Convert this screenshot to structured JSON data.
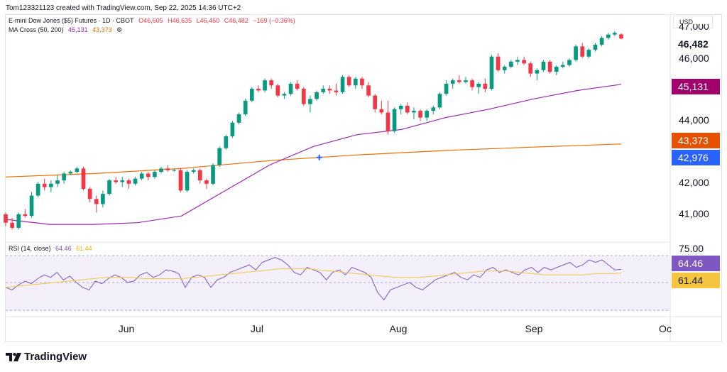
{
  "header": {
    "author_line": "Tom123321123 created with TradingView.com, Sep 22, 2025 14:36 UTC+2"
  },
  "legend": {
    "symbol": "E-mini Dow Jones ($5) Futures · 1D · CBOT",
    "open": "O46,605",
    "high": "H46,635",
    "low": "L46,460",
    "close": "C46,482",
    "change": "−169 (−0.36%)",
    "ma_label": "MA Cross (50, 200)",
    "ma50": "45,131",
    "ma200": "43,373",
    "ma_settings": "⚙",
    "rsi_label": "RSI (14, close)",
    "rsi_value": "64.46",
    "rsi_ma": "61.44"
  },
  "currency": "USD",
  "price_axis": {
    "labels": [
      "47,000",
      "46,000",
      "44,000",
      "42,000",
      "41,000"
    ],
    "top_partial": "47,000"
  },
  "rsi_axis": {
    "label": "75.00"
  },
  "badges": {
    "last_price": "46,482",
    "ma50": "45,131",
    "ma200": "43,373",
    "cross": "42,976",
    "rsi": "64.46",
    "rsi_ma": "61.44"
  },
  "time_axis": [
    "Jun",
    "Jul",
    "Aug",
    "Sep",
    "Oc"
  ],
  "colors": {
    "up": "#089981",
    "down": "#f23645",
    "ma50": "#9c27b0",
    "ma200": "#ef6c00",
    "cross": "#2962ff",
    "rsi": "#7e57c2",
    "rsi_ma": "#f5c542",
    "rsi_band": "#f3f0fb"
  },
  "brand": "TradingView",
  "chart_data": {
    "type": "candlestick",
    "ylim": [
      40500,
      47200
    ],
    "candles": [
      [
        41300,
        41350,
        40950,
        41050
      ],
      [
        41050,
        41200,
        40850,
        40900
      ],
      [
        40900,
        41350,
        40850,
        41300
      ],
      [
        41300,
        41450,
        41200,
        41250
      ],
      [
        41250,
        41950,
        41200,
        41850
      ],
      [
        41850,
        42250,
        41800,
        42200
      ],
      [
        42200,
        42350,
        42000,
        42100
      ],
      [
        42100,
        42300,
        41950,
        42200
      ],
      [
        42200,
        42450,
        42100,
        42300
      ],
      [
        42300,
        42550,
        42200,
        42500
      ],
      [
        42500,
        42600,
        42450,
        42550
      ],
      [
        42550,
        42700,
        42500,
        42650
      ],
      [
        42650,
        42700,
        42000,
        42050
      ],
      [
        42050,
        42100,
        41650,
        41750
      ],
      [
        41750,
        41850,
        41350,
        41600
      ],
      [
        41600,
        42000,
        41500,
        41900
      ],
      [
        41900,
        42350,
        41850,
        42300
      ],
      [
        42300,
        42400,
        42200,
        42250
      ],
      [
        42250,
        42400,
        42100,
        42300
      ],
      [
        42300,
        42350,
        42050,
        42200
      ],
      [
        42200,
        42400,
        42150,
        42350
      ],
      [
        42350,
        42550,
        42300,
        42500
      ],
      [
        42500,
        42550,
        42300,
        42400
      ],
      [
        42400,
        42600,
        42350,
        42550
      ],
      [
        42550,
        42700,
        42500,
        42650
      ],
      [
        42650,
        42750,
        42550,
        42600
      ],
      [
        42600,
        42650,
        42550,
        42600
      ],
      [
        42600,
        42650,
        41950,
        42000
      ],
      [
        42000,
        42600,
        41950,
        42550
      ],
      [
        42550,
        42650,
        42500,
        42600
      ],
      [
        42600,
        42650,
        42200,
        42300
      ],
      [
        42300,
        42350,
        42050,
        42200
      ],
      [
        42200,
        42800,
        42150,
        42750
      ],
      [
        42750,
        43300,
        42700,
        43250
      ],
      [
        43250,
        43650,
        43200,
        43600
      ],
      [
        43600,
        44050,
        43550,
        44000
      ],
      [
        44000,
        44300,
        43950,
        44250
      ],
      [
        44250,
        44700,
        44200,
        44650
      ],
      [
        44650,
        45050,
        44600,
        45000
      ],
      [
        45000,
        45100,
        44900,
        44950
      ],
      [
        44950,
        45300,
        44900,
        45250
      ],
      [
        45250,
        45300,
        45000,
        45100
      ],
      [
        45100,
        45150,
        44750,
        44800
      ],
      [
        44800,
        44900,
        44700,
        44850
      ],
      [
        44850,
        45200,
        44800,
        45150
      ],
      [
        45150,
        45250,
        44950,
        45000
      ],
      [
        45000,
        45050,
        44500,
        44550
      ],
      [
        44550,
        44800,
        44300,
        44700
      ],
      [
        44700,
        44950,
        44650,
        44900
      ],
      [
        44900,
        45100,
        44850,
        45000
      ],
      [
        45000,
        45100,
        44850,
        44950
      ],
      [
        44950,
        45150,
        44800,
        44900
      ],
      [
        44900,
        45400,
        44850,
        45350
      ],
      [
        45350,
        45400,
        45050,
        45100
      ],
      [
        45100,
        45350,
        45000,
        45300
      ],
      [
        45300,
        45350,
        45000,
        45100
      ],
      [
        45100,
        45200,
        44750,
        44800
      ],
      [
        44800,
        44850,
        44300,
        44400
      ],
      [
        44400,
        44650,
        44250,
        44300
      ],
      [
        44300,
        44650,
        43650,
        43750
      ],
      [
        43750,
        44450,
        43700,
        44400
      ],
      [
        44400,
        44550,
        44250,
        44500
      ],
      [
        44500,
        44600,
        44250,
        44300
      ],
      [
        44300,
        44450,
        44100,
        44350
      ],
      [
        44350,
        44400,
        44050,
        44150
      ],
      [
        44150,
        44400,
        44050,
        44350
      ],
      [
        44350,
        44500,
        44250,
        44450
      ],
      [
        44450,
        44900,
        44400,
        44850
      ],
      [
        44850,
        45250,
        44800,
        45150
      ],
      [
        45150,
        45300,
        45000,
        45250
      ],
      [
        45250,
        45400,
        45150,
        45200
      ],
      [
        45200,
        45350,
        45150,
        45250
      ],
      [
        45250,
        45300,
        44950,
        45050
      ],
      [
        45050,
        45200,
        44850,
        45150
      ],
      [
        45150,
        45300,
        44900,
        45000
      ],
      [
        45000,
        46000,
        44950,
        45950
      ],
      [
        45950,
        46050,
        45500,
        45550
      ],
      [
        45550,
        45700,
        45450,
        45650
      ],
      [
        45650,
        45850,
        45600,
        45800
      ],
      [
        45800,
        45950,
        45700,
        45850
      ],
      [
        45850,
        45950,
        45700,
        45750
      ],
      [
        45750,
        45800,
        45350,
        45450
      ],
      [
        45450,
        45600,
        45250,
        45550
      ],
      [
        45550,
        45850,
        45500,
        45800
      ],
      [
        45800,
        45850,
        45450,
        45500
      ],
      [
        45500,
        45700,
        45400,
        45650
      ],
      [
        45650,
        45800,
        45600,
        45700
      ],
      [
        45700,
        45900,
        45650,
        45850
      ],
      [
        45850,
        46300,
        45800,
        46250
      ],
      [
        46250,
        46350,
        45900,
        45950
      ],
      [
        45950,
        46200,
        45900,
        46150
      ],
      [
        46150,
        46350,
        46100,
        46300
      ],
      [
        46300,
        46550,
        46250,
        46500
      ],
      [
        46500,
        46650,
        46450,
        46600
      ],
      [
        46600,
        46700,
        46550,
        46650
      ],
      [
        46605,
        46635,
        46460,
        46482
      ]
    ],
    "ma50": [
      [
        0,
        41150
      ],
      [
        15,
        41000
      ],
      [
        30,
        41000
      ],
      [
        45,
        41050
      ],
      [
        60,
        41250
      ],
      [
        75,
        42000
      ],
      [
        90,
        42750
      ],
      [
        105,
        43300
      ],
      [
        120,
        43650
      ],
      [
        135,
        43800
      ],
      [
        150,
        44150
      ],
      [
        165,
        44400
      ],
      [
        180,
        44700
      ],
      [
        195,
        44950
      ],
      [
        210,
        45131
      ]
    ],
    "ma200": [
      [
        0,
        42400
      ],
      [
        30,
        42500
      ],
      [
        60,
        42650
      ],
      [
        90,
        42880
      ],
      [
        120,
        43050
      ],
      [
        150,
        43180
      ],
      [
        180,
        43280
      ],
      [
        210,
        43373
      ]
    ],
    "cross_point": [
      107,
      42976
    ],
    "rsi": [
      50,
      48,
      52,
      55,
      53,
      57,
      60,
      58,
      62,
      56,
      59,
      54,
      50,
      48,
      55,
      53,
      57,
      60,
      58,
      54,
      55,
      60,
      62,
      58,
      60,
      64,
      63,
      61,
      50,
      58,
      60,
      58,
      50,
      56,
      58,
      62,
      64,
      66,
      68,
      64,
      70,
      72,
      74,
      72,
      68,
      62,
      60,
      66,
      64,
      62,
      56,
      62,
      64,
      60,
      66,
      64,
      62,
      58,
      46,
      40,
      48,
      50,
      52,
      54,
      50,
      48,
      52,
      56,
      58,
      60,
      62,
      58,
      56,
      60,
      58,
      64,
      66,
      62,
      64,
      62,
      60,
      64,
      66,
      62,
      66,
      64,
      66,
      68,
      70,
      66,
      68,
      72,
      70,
      72,
      68,
      64,
      64.46
    ],
    "rsi_ma": [
      50,
      51,
      52,
      53,
      54,
      55,
      56,
      57,
      58,
      58,
      58,
      57,
      57,
      57,
      57,
      58,
      59,
      60,
      61,
      62,
      63,
      64,
      65,
      65,
      65,
      64,
      63,
      62,
      61,
      60,
      59,
      58,
      58,
      58,
      59,
      60,
      61,
      62,
      63,
      63,
      63,
      62,
      61,
      60,
      60,
      60,
      60,
      61,
      61,
      61.44
    ],
    "rsi_ylim": [
      30,
      80
    ],
    "rsi_levels": [
      70,
      30
    ],
    "x_ticks": [
      "Jun",
      "Jul",
      "Aug",
      "Sep",
      "Oc"
    ]
  }
}
